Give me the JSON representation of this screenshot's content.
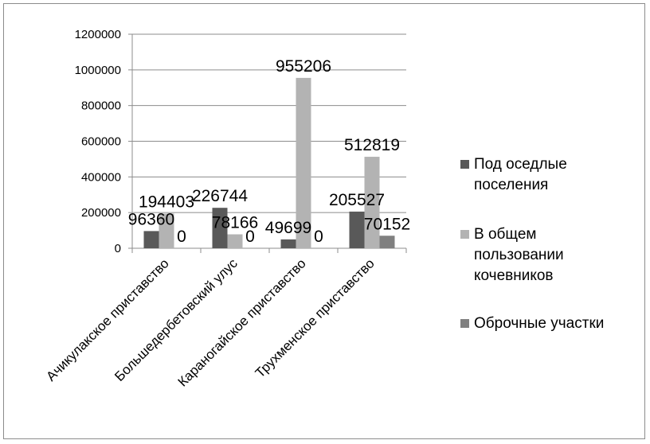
{
  "chart_data": {
    "type": "bar",
    "title": "",
    "xlabel": "",
    "ylabel": "",
    "ylim": [
      0,
      1200000
    ],
    "yticks": [
      0,
      200000,
      400000,
      600000,
      800000,
      1000000,
      1200000
    ],
    "grid": true,
    "legend_position": "right",
    "categories": [
      "Ачикулакское приставство",
      "Большедербетовский улус",
      "Караногайское приставство",
      "Трухменское приставство"
    ],
    "series": [
      {
        "name": "Под оседлые поселения",
        "color": "#595959",
        "values": [
          96360,
          226744,
          49699,
          205527
        ],
        "labels": [
          "96360",
          "226744",
          "49699",
          "205527"
        ]
      },
      {
        "name": "В общем пользовании кочевников",
        "color": "#b3b3b3",
        "values": [
          194403,
          78166,
          955206,
          512819
        ],
        "labels": [
          "194403",
          "78166",
          "955206",
          "512819"
        ]
      },
      {
        "name": "Оброчные участки",
        "color": "#808080",
        "values": [
          0,
          0,
          0,
          70152
        ],
        "labels": [
          "0",
          "0",
          "0",
          "70152"
        ]
      }
    ],
    "legend_lines": [
      [
        "Под оседлые",
        "поселения"
      ],
      [
        "В общем",
        "пользовании",
        "кочевников"
      ],
      [
        "Оброчные участки"
      ]
    ]
  }
}
